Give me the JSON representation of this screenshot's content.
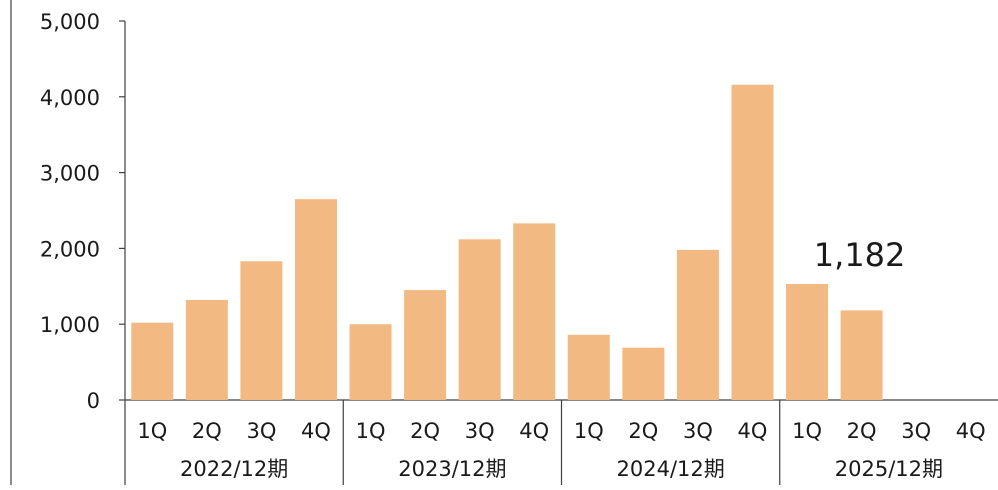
{
  "chart_data": {
    "type": "bar",
    "title": "",
    "xlabel": "",
    "ylabel": "",
    "ylim": [
      0,
      5000
    ],
    "yticks": [
      0,
      1000,
      2000,
      3000,
      4000,
      5000
    ],
    "ytick_labels": [
      "0",
      "1,000",
      "2,000",
      "3,000",
      "4,000",
      "5,000"
    ],
    "grid": false,
    "legend": "none",
    "bar_color": "#f2ba82",
    "groups": [
      {
        "label": "2022/12期",
        "categories": [
          "1Q",
          "2Q",
          "3Q",
          "4Q"
        ],
        "values": [
          1020,
          1320,
          1830,
          2650
        ]
      },
      {
        "label": "2023/12期",
        "categories": [
          "1Q",
          "2Q",
          "3Q",
          "4Q"
        ],
        "values": [
          1000,
          1450,
          2120,
          2330
        ]
      },
      {
        "label": "2024/12期",
        "categories": [
          "1Q",
          "2Q",
          "3Q",
          "4Q"
        ],
        "values": [
          860,
          690,
          1980,
          4160
        ]
      },
      {
        "label": "2025/12期",
        "categories": [
          "1Q",
          "2Q",
          "3Q",
          "4Q"
        ],
        "values": [
          1530,
          1182,
          null,
          null
        ]
      }
    ],
    "annotations": [
      {
        "text": "1,182",
        "group": 3,
        "category": 1
      }
    ]
  }
}
